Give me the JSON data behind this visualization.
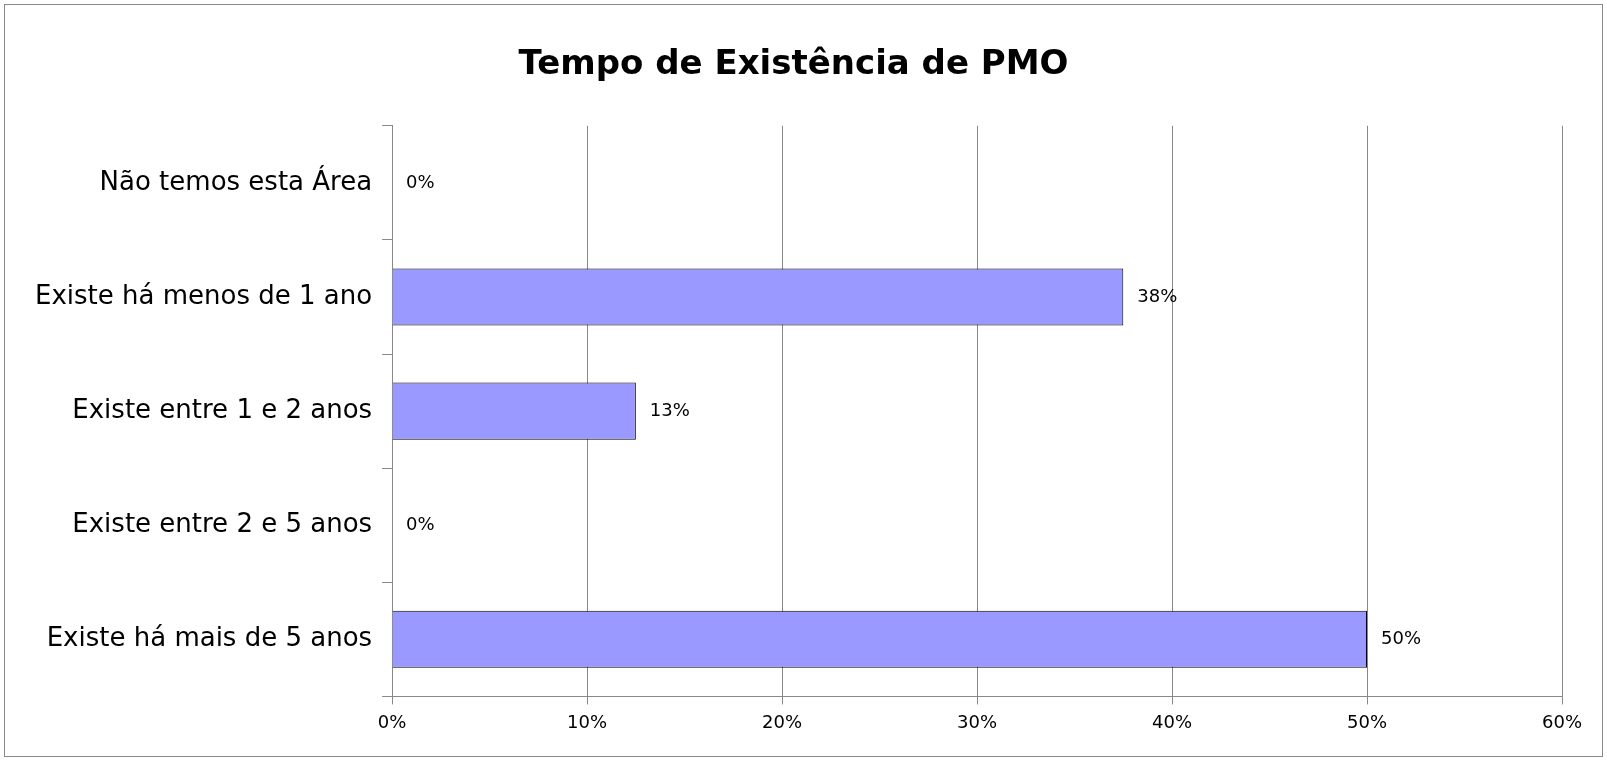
{
  "chart_data": {
    "type": "bar",
    "orientation": "horizontal",
    "title": "Tempo de Existência de PMO",
    "categories": [
      "Não temos esta Área",
      "Existe há menos de 1 ano",
      "Existe entre 1 e 2 anos",
      "Existe entre 2 e 5 anos",
      "Existe há mais de 5 anos"
    ],
    "values": [
      0,
      37.5,
      12.5,
      0,
      50
    ],
    "value_labels": [
      "0%",
      "38%",
      "13%",
      "0%",
      "50%"
    ],
    "color": "#9999ff",
    "xlim": [
      0,
      60
    ],
    "xticks": [
      {
        "value": 0,
        "label": "0%"
      },
      {
        "value": 10,
        "label": "10%"
      },
      {
        "value": 20,
        "label": "20%"
      },
      {
        "value": 30,
        "label": "30%"
      },
      {
        "value": 40,
        "label": "40%"
      },
      {
        "value": 50,
        "label": "50%"
      },
      {
        "value": 60,
        "label": "60%"
      }
    ],
    "grid": "x",
    "legend": false
  }
}
